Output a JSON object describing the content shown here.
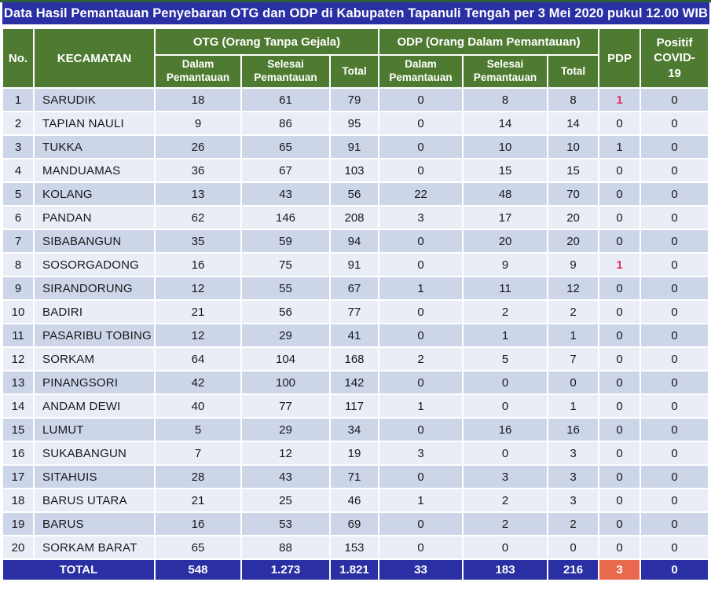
{
  "chart_data": {
    "type": "table",
    "title": "Data Hasil Pemantauan Penyebaran OTG dan ODP di Kabupaten Tapanuli Tengah per 3 Mei 2020 pukul 12.00 WIB",
    "columns": {
      "no": "No.",
      "kecamatan": "KECAMATAN",
      "otg_group": "OTG (Orang Tanpa Gejala)",
      "odp_group": "ODP (Orang Dalam Pemantauan)",
      "dalam": "Dalam Pemantauan",
      "selesai": "Selesai Pemantauan",
      "total": "Total",
      "pdp": "PDP",
      "positif": "Positif COVID-19"
    },
    "rows": [
      {
        "no": "1",
        "kecamatan": "SARUDIK",
        "otg_dalam": "18",
        "otg_selesai": "61",
        "otg_total": "79",
        "odp_dalam": "0",
        "odp_selesai": "8",
        "odp_total": "8",
        "pdp": "1",
        "pdp_alert": true,
        "positif": "0"
      },
      {
        "no": "2",
        "kecamatan": "TAPIAN NAULI",
        "otg_dalam": "9",
        "otg_selesai": "86",
        "otg_total": "95",
        "odp_dalam": "0",
        "odp_selesai": "14",
        "odp_total": "14",
        "pdp": "0",
        "pdp_alert": false,
        "positif": "0"
      },
      {
        "no": "3",
        "kecamatan": "TUKKA",
        "otg_dalam": "26",
        "otg_selesai": "65",
        "otg_total": "91",
        "odp_dalam": "0",
        "odp_selesai": "10",
        "odp_total": "10",
        "pdp": "1",
        "pdp_alert": false,
        "positif": "0"
      },
      {
        "no": "4",
        "kecamatan": "MANDUAMAS",
        "otg_dalam": "36",
        "otg_selesai": "67",
        "otg_total": "103",
        "odp_dalam": "0",
        "odp_selesai": "15",
        "odp_total": "15",
        "pdp": "0",
        "pdp_alert": false,
        "positif": "0"
      },
      {
        "no": "5",
        "kecamatan": "KOLANG",
        "otg_dalam": "13",
        "otg_selesai": "43",
        "otg_total": "56",
        "odp_dalam": "22",
        "odp_selesai": "48",
        "odp_total": "70",
        "pdp": "0",
        "pdp_alert": false,
        "positif": "0"
      },
      {
        "no": "6",
        "kecamatan": "PANDAN",
        "otg_dalam": "62",
        "otg_selesai": "146",
        "otg_total": "208",
        "odp_dalam": "3",
        "odp_selesai": "17",
        "odp_total": "20",
        "pdp": "0",
        "pdp_alert": false,
        "positif": "0"
      },
      {
        "no": "7",
        "kecamatan": "SIBABANGUN",
        "otg_dalam": "35",
        "otg_selesai": "59",
        "otg_total": "94",
        "odp_dalam": "0",
        "odp_selesai": "20",
        "odp_total": "20",
        "pdp": "0",
        "pdp_alert": false,
        "positif": "0"
      },
      {
        "no": "8",
        "kecamatan": "SOSORGADONG",
        "otg_dalam": "16",
        "otg_selesai": "75",
        "otg_total": "91",
        "odp_dalam": "0",
        "odp_selesai": "9",
        "odp_total": "9",
        "pdp": "1",
        "pdp_alert": true,
        "positif": "0"
      },
      {
        "no": "9",
        "kecamatan": "SIRANDORUNG",
        "otg_dalam": "12",
        "otg_selesai": "55",
        "otg_total": "67",
        "odp_dalam": "1",
        "odp_selesai": "11",
        "odp_total": "12",
        "pdp": "0",
        "pdp_alert": false,
        "positif": "0"
      },
      {
        "no": "10",
        "kecamatan": "BADIRI",
        "otg_dalam": "21",
        "otg_selesai": "56",
        "otg_total": "77",
        "odp_dalam": "0",
        "odp_selesai": "2",
        "odp_total": "2",
        "pdp": "0",
        "pdp_alert": false,
        "positif": "0"
      },
      {
        "no": "11",
        "kecamatan": "PASARIBU TOBING",
        "otg_dalam": "12",
        "otg_selesai": "29",
        "otg_total": "41",
        "odp_dalam": "0",
        "odp_selesai": "1",
        "odp_total": "1",
        "pdp": "0",
        "pdp_alert": false,
        "positif": "0"
      },
      {
        "no": "12",
        "kecamatan": "SORKAM",
        "otg_dalam": "64",
        "otg_selesai": "104",
        "otg_total": "168",
        "odp_dalam": "2",
        "odp_selesai": "5",
        "odp_total": "7",
        "pdp": "0",
        "pdp_alert": false,
        "positif": "0"
      },
      {
        "no": "13",
        "kecamatan": "PINANGSORI",
        "otg_dalam": "42",
        "otg_selesai": "100",
        "otg_total": "142",
        "odp_dalam": "0",
        "odp_selesai": "0",
        "odp_total": "0",
        "pdp": "0",
        "pdp_alert": false,
        "positif": "0"
      },
      {
        "no": "14",
        "kecamatan": "ANDAM DEWI",
        "otg_dalam": "40",
        "otg_selesai": "77",
        "otg_total": "117",
        "odp_dalam": "1",
        "odp_selesai": "0",
        "odp_total": "1",
        "pdp": "0",
        "pdp_alert": false,
        "positif": "0"
      },
      {
        "no": "15",
        "kecamatan": "LUMUT",
        "otg_dalam": "5",
        "otg_selesai": "29",
        "otg_total": "34",
        "odp_dalam": "0",
        "odp_selesai": "16",
        "odp_total": "16",
        "pdp": "0",
        "pdp_alert": false,
        "positif": "0"
      },
      {
        "no": "16",
        "kecamatan": "SUKABANGUN",
        "otg_dalam": "7",
        "otg_selesai": "12",
        "otg_total": "19",
        "odp_dalam": "3",
        "odp_selesai": "0",
        "odp_total": "3",
        "pdp": "0",
        "pdp_alert": false,
        "positif": "0"
      },
      {
        "no": "17",
        "kecamatan": "SITAHUIS",
        "otg_dalam": "28",
        "otg_selesai": "43",
        "otg_total": "71",
        "odp_dalam": "0",
        "odp_selesai": "3",
        "odp_total": "3",
        "pdp": "0",
        "pdp_alert": false,
        "positif": "0"
      },
      {
        "no": "18",
        "kecamatan": "BARUS UTARA",
        "otg_dalam": "21",
        "otg_selesai": "25",
        "otg_total": "46",
        "odp_dalam": "1",
        "odp_selesai": "2",
        "odp_total": "3",
        "pdp": "0",
        "pdp_alert": false,
        "positif": "0"
      },
      {
        "no": "19",
        "kecamatan": "BARUS",
        "otg_dalam": "16",
        "otg_selesai": "53",
        "otg_total": "69",
        "odp_dalam": "0",
        "odp_selesai": "2",
        "odp_total": "2",
        "pdp": "0",
        "pdp_alert": false,
        "positif": "0"
      },
      {
        "no": "20",
        "kecamatan": "SORKAM BARAT",
        "otg_dalam": "65",
        "otg_selesai": "88",
        "otg_total": "153",
        "odp_dalam": "0",
        "odp_selesai": "0",
        "odp_total": "0",
        "pdp": "0",
        "pdp_alert": false,
        "positif": "0"
      }
    ],
    "total_row": {
      "label": "TOTAL",
      "otg_dalam": "548",
      "otg_selesai": "1.273",
      "otg_total": "1.821",
      "odp_dalam": "33",
      "odp_selesai": "183",
      "odp_total": "216",
      "pdp": "3",
      "positif": "0"
    }
  },
  "colors": {
    "title_bar": "#2a2fa4",
    "header_green": "#4e7b31",
    "row_dark": "#cdd6e9",
    "row_light": "#e9edf6",
    "total_bar": "#2a2fa4",
    "pdp_total_bg": "#e8694e",
    "pdp_alert_text": "#e8315e",
    "top_strip": "#2d5c38"
  }
}
